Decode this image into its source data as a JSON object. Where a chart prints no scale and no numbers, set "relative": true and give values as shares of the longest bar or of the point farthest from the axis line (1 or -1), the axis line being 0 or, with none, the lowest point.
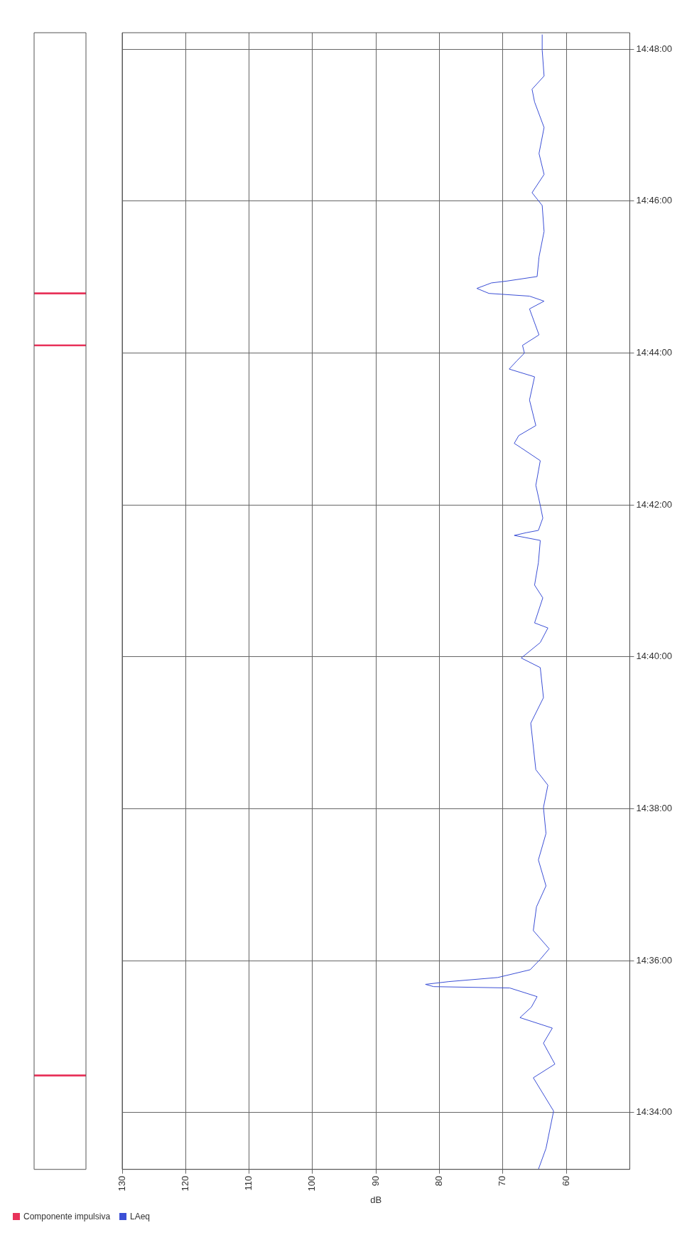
{
  "chart_data": [
    {
      "type": "bar",
      "orientation": "horizontal",
      "x": [
        14.5748,
        14.735,
        14.7464
      ],
      "series": [
        {
          "name": "Componente impulsiva",
          "color": "#e8335a",
          "values": [
            1,
            1,
            1
          ]
        }
      ],
      "relative": true,
      "ylim": [
        14.5542,
        14.8036
      ],
      "legend": "bottom left"
    },
    {
      "type": "line",
      "series": [
        {
          "name": "LAeq",
          "color": "#3b4fd6",
          "x": [
            64.4,
            63.2,
            62.0,
            65.2,
            61.8,
            63.6,
            62.2,
            67.3,
            65.5,
            64.6,
            68.9,
            80.9,
            82.2,
            78.5,
            70.8,
            65.7,
            64.1,
            62.7,
            65.2,
            64.7,
            63.2,
            64.4,
            63.2,
            63.6,
            62.9,
            64.8,
            65.6,
            63.6,
            64.1,
            67.1,
            64.1,
            62.9,
            65.0,
            63.7,
            65.0,
            64.4,
            64.1,
            68.2,
            66.3,
            64.4,
            63.7,
            64.1,
            64.8,
            64.1,
            67.1,
            68.2,
            67.5,
            64.8,
            65.8,
            65.0,
            69.0,
            67.8,
            66.6,
            66.9,
            64.3,
            65.8,
            63.5,
            65.8,
            72.2,
            74.1,
            71.8,
            69.4,
            64.6,
            64.3,
            63.5,
            63.8,
            65.4,
            63.5,
            64.3,
            63.5,
            65.0,
            65.4,
            63.5,
            63.8,
            63.8
          ],
          "values": [
            14.5542,
            14.5588,
            14.567,
            14.5743,
            14.5773,
            14.5819,
            14.5852,
            14.5875,
            14.5898,
            14.5921,
            14.594,
            14.5943,
            14.5948,
            14.5954,
            14.5963,
            14.598,
            14.6003,
            14.6026,
            14.6066,
            14.6118,
            14.6164,
            14.6221,
            14.6279,
            14.6336,
            14.6385,
            14.6419,
            14.6521,
            14.6577,
            14.6643,
            14.6664,
            14.6698,
            14.673,
            14.6741,
            14.6796,
            14.6824,
            14.6873,
            14.6922,
            14.6933,
            14.6939,
            14.6944,
            14.6971,
            14.6999,
            14.7043,
            14.7097,
            14.7125,
            14.7135,
            14.7152,
            14.7174,
            14.723,
            14.7281,
            14.7298,
            14.7316,
            14.7333,
            14.735,
            14.7373,
            14.743,
            14.7447,
            14.7458,
            14.7464,
            14.7475,
            14.7487,
            14.7491,
            14.7501,
            14.7544,
            14.76,
            14.7657,
            14.7685,
            14.7725,
            14.7771,
            14.7828,
            14.7884,
            14.7912,
            14.7941,
            14.7998,
            14.8032
          ]
        }
      ],
      "xlim": [
        130,
        50
      ],
      "xticks": [
        130,
        120,
        110,
        100,
        90,
        80,
        70,
        60
      ],
      "xlabel": "dB",
      "ylim": [
        14.5542,
        14.8036
      ],
      "yticks": [
        {
          "value": 14.5667,
          "label": "14:34:00"
        },
        {
          "value": 14.6,
          "label": "14:36:00"
        },
        {
          "value": 14.6333,
          "label": "14:38:00"
        },
        {
          "value": 14.6667,
          "label": "14:40:00"
        },
        {
          "value": 14.7,
          "label": "14:42:00"
        },
        {
          "value": 14.7333,
          "label": "14:44:00"
        },
        {
          "value": 14.7667,
          "label": "14:46:00"
        },
        {
          "value": 14.8,
          "label": "14:48:00"
        }
      ],
      "grid": true,
      "legend": "bottom left"
    }
  ]
}
